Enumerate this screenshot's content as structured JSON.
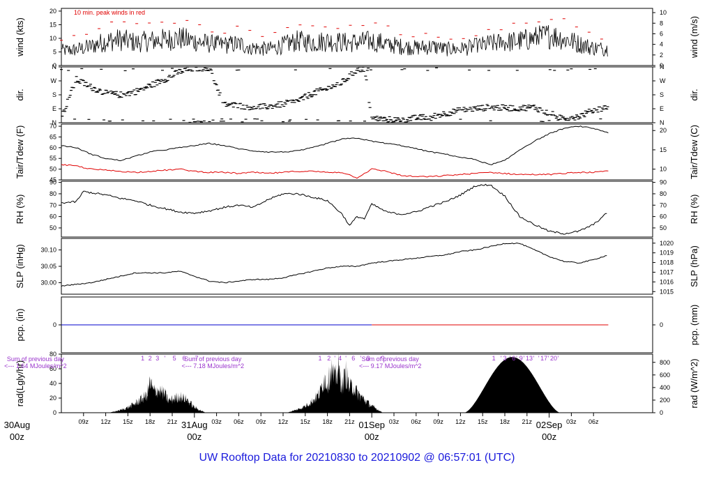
{
  "title": "UW Rooftop Data for 20210830  to  20210902 @ 06:57:01  (UTC)",
  "chart_data": {
    "type": "line",
    "x_range_hours": [
      0,
      80
    ],
    "time_ticks": [
      {
        "h": 3,
        "label": "09z"
      },
      {
        "h": 6,
        "label": "12z"
      },
      {
        "h": 9,
        "label": "15z"
      },
      {
        "h": 12,
        "label": "18z"
      },
      {
        "h": 15,
        "label": "21z"
      },
      {
        "h": 21,
        "label": "03z"
      },
      {
        "h": 24,
        "label": "06z"
      },
      {
        "h": 27,
        "label": "09z"
      },
      {
        "h": 30,
        "label": "12z"
      },
      {
        "h": 33,
        "label": "15z"
      },
      {
        "h": 36,
        "label": "18z"
      },
      {
        "h": 39,
        "label": "21z"
      },
      {
        "h": 45,
        "label": "03z"
      },
      {
        "h": 48,
        "label": "06z"
      },
      {
        "h": 51,
        "label": "09z"
      },
      {
        "h": 54,
        "label": "12z"
      },
      {
        "h": 57,
        "label": "15z"
      },
      {
        "h": 60,
        "label": "18z"
      },
      {
        "h": 63,
        "label": "21z"
      },
      {
        "h": 69,
        "label": "03z"
      },
      {
        "h": 72,
        "label": "06z"
      }
    ],
    "date_ticks": [
      {
        "h": -6,
        "label": "30Aug",
        "sub": "00z"
      },
      {
        "h": 18,
        "label": "31Aug",
        "sub": "00z"
      },
      {
        "h": 42,
        "label": "01Sep",
        "sub": "00z"
      },
      {
        "h": 66,
        "label": "02Sep",
        "sub": "00z"
      }
    ],
    "colors": {
      "main": "#000000",
      "dewpoint": "#e00000",
      "peak": "#e00000",
      "note": "#9933cc",
      "precip_a": "#0000cc",
      "precip_b": "#e00000",
      "date": "#e00000",
      "title": "#1a1adc"
    },
    "panels": {
      "wind": {
        "ylabel": "wind (kts)",
        "ylabel_right": "wind (m/s)",
        "ylim": [
          0,
          21
        ],
        "ticks": [
          0,
          5,
          10,
          15,
          20
        ],
        "right_ticks": [
          "0",
          "2",
          "4",
          "6",
          "8",
          "10"
        ],
        "annotation": "10 min. peak winds in red",
        "mean_x": [
          0,
          2,
          4,
          6,
          8,
          10,
          12,
          14,
          16,
          18,
          20,
          22,
          24,
          26,
          28,
          30,
          32,
          34,
          36,
          38,
          40,
          42,
          44,
          46,
          48,
          50,
          52,
          54,
          56,
          58,
          60,
          62,
          64,
          66,
          68,
          70,
          72,
          74
        ],
        "mean_y": [
          5.5,
          5.8,
          7,
          9,
          9.5,
          8.5,
          9,
          9.5,
          10,
          9,
          8,
          7.5,
          8,
          6.5,
          6,
          7.5,
          9,
          8.5,
          9,
          8.5,
          8.5,
          9,
          8,
          7,
          6.5,
          7,
          6,
          6,
          7,
          8,
          8.5,
          9,
          10,
          11,
          10,
          8,
          6.5,
          6
        ]
      },
      "dir": {
        "ylabel": "dir.",
        "ylabel_right": "dir.",
        "tick_labels": [
          "N",
          "E",
          "S",
          "W",
          "N"
        ],
        "x": [
          0,
          2,
          4,
          6,
          8,
          10,
          12,
          14,
          16,
          18,
          20,
          22,
          24,
          26,
          28,
          30,
          32,
          34,
          36,
          38,
          39,
          40,
          41,
          42,
          44,
          46,
          48,
          50,
          52,
          54,
          56,
          58,
          60,
          62,
          64,
          66,
          68,
          70,
          72,
          74
        ],
        "deg": [
          30,
          280,
          230,
          190,
          180,
          200,
          240,
          280,
          330,
          350,
          355,
          120,
          110,
          100,
          105,
          120,
          140,
          190,
          220,
          260,
          300,
          340,
          350,
          30,
          20,
          20,
          30,
          40,
          60,
          80,
          90,
          100,
          95,
          95,
          100,
          60,
          30,
          40,
          80,
          100
        ]
      },
      "temp": {
        "ylabel": "Tair/Tdew (F)",
        "ylabel_right": "Tair/Tdew (C)",
        "ylim": [
          45,
          71
        ],
        "ticks": [
          45,
          50,
          55,
          60,
          65,
          70
        ],
        "right_ticks": [
          {
            "c": 10,
            "label": "10"
          },
          {
            "c": 15,
            "label": "15"
          },
          {
            "c": 20,
            "label": "20"
          }
        ],
        "x": [
          0,
          2,
          4,
          6,
          8,
          10,
          12,
          14,
          16,
          18,
          20,
          22,
          24,
          26,
          28,
          30,
          32,
          34,
          36,
          38,
          40,
          42,
          44,
          46,
          48,
          50,
          52,
          54,
          56,
          58,
          60,
          62,
          64,
          66,
          68,
          70,
          72,
          74
        ],
        "tair": [
          61,
          60,
          57,
          55,
          54,
          56,
          58,
          59,
          60,
          61,
          62,
          61,
          59.5,
          58.5,
          58,
          58,
          58.5,
          60,
          62,
          64,
          64.5,
          63,
          62,
          61,
          59.5,
          58,
          57,
          55.5,
          54.5,
          52,
          54,
          59,
          63,
          66.5,
          69,
          70,
          69,
          67
        ],
        "tdew": [
          52,
          51.5,
          50,
          49.5,
          49,
          48.5,
          49,
          49.5,
          50,
          49,
          48.5,
          48.5,
          48,
          48.5,
          48,
          48.5,
          49,
          49,
          48.5,
          48.5,
          46,
          50,
          49,
          47,
          46.5,
          46.5,
          47,
          47.5,
          48,
          48.5,
          48,
          47.5,
          47.5,
          47.5,
          48,
          48.5,
          48.5,
          49
        ]
      },
      "rh": {
        "ylabel": "RH (%)",
        "ylabel_right": "RH (%)",
        "ylim": [
          42,
          91
        ],
        "ticks": [
          50,
          60,
          70,
          80,
          90
        ],
        "x": [
          0,
          2,
          3,
          4,
          6,
          8,
          10,
          12,
          14,
          16,
          18,
          20,
          22,
          24,
          26,
          28,
          30,
          32,
          34,
          36,
          38,
          39,
          40,
          41,
          42,
          44,
          46,
          48,
          50,
          52,
          54,
          56,
          58,
          60,
          62,
          64,
          66,
          68,
          70,
          72,
          74
        ],
        "values": [
          72,
          73,
          82,
          81,
          79,
          76,
          74,
          70,
          67,
          64,
          63,
          65,
          68,
          70,
          68,
          75,
          80,
          80,
          77,
          74,
          62,
          52,
          60,
          58,
          71,
          64,
          62,
          64,
          69,
          73,
          79,
          87,
          88,
          78,
          60,
          53,
          47,
          45,
          47,
          53,
          64
        ]
      },
      "slp": {
        "ylabel": "SLP (inHg)",
        "ylabel_right": "SLP (hPa)",
        "ylim": [
          29.965,
          30.135
        ],
        "ticks": [
          30.0,
          30.05,
          30.1
        ],
        "tick_labels": [
          "30.00",
          "30.05",
          "30.10"
        ],
        "right_ticks": [
          1015,
          1016,
          1017,
          1018,
          1019,
          1020
        ],
        "x": [
          0,
          2,
          4,
          6,
          8,
          10,
          12,
          14,
          16,
          18,
          20,
          22,
          24,
          26,
          28,
          30,
          32,
          34,
          36,
          38,
          40,
          42,
          44,
          46,
          48,
          50,
          52,
          54,
          56,
          58,
          60,
          62,
          64,
          66,
          68,
          70,
          72,
          74
        ],
        "values": [
          29.99,
          29.995,
          30.0,
          30.01,
          30.02,
          30.03,
          30.03,
          30.03,
          30.035,
          30.02,
          30.005,
          30.0,
          30.005,
          30.01,
          30.01,
          30.015,
          30.025,
          30.035,
          30.045,
          30.05,
          30.05,
          30.06,
          30.065,
          30.07,
          30.075,
          30.08,
          30.085,
          30.095,
          30.1,
          30.11,
          30.12,
          30.12,
          30.1,
          30.08,
          30.065,
          30.06,
          30.07,
          30.085
        ]
      },
      "pcp": {
        "ylabel": "pcp. (in)",
        "ylabel_right": "pcp. (mm)",
        "tick_left": "0",
        "tick_right": "0",
        "segments": [
          {
            "from": 0,
            "to": 42,
            "value": 0,
            "color": "#0000cc"
          },
          {
            "from": 42,
            "to": 74,
            "value": 0,
            "color": "#e00000"
          }
        ]
      },
      "rad": {
        "ylabel": "rad(Lgly/hr)",
        "ylabel_right": "rad (W/m^2)",
        "ylim": [
          0,
          80
        ],
        "ticks": [
          0,
          20,
          40,
          60,
          80
        ],
        "right_ticks": [
          0,
          200,
          400,
          600,
          800
        ],
        "days": [
          {
            "x": [
              6.5,
              8,
              9,
              10,
              11,
              11.5,
              12,
              12.5,
              13,
              14,
              14.5,
              15,
              16,
              16.5,
              17,
              18,
              19.5
            ],
            "y": [
              0,
              4,
              8,
              14,
              22,
              25,
              45,
              32,
              35,
              28,
              18,
              20,
              25,
              22,
              20,
              8,
              0
            ]
          },
          {
            "x": [
              30.5,
              32,
              33,
              34,
              35,
              35.5,
              36,
              36.5,
              37,
              37.5,
              38,
              38.5,
              39,
              39.5,
              40,
              41,
              42,
              43.5
            ],
            "y": [
              0,
              5,
              10,
              18,
              30,
              52,
              45,
              65,
              50,
              66,
              40,
              60,
              38,
              40,
              30,
              20,
              10,
              0
            ]
          }
        ],
        "day3_range": [
          54.5,
          67.5
        ],
        "day3_peak": 76,
        "hour_marks": [
          {
            "h": 11,
            "label": "1"
          },
          {
            "h": 12,
            "label": "2"
          },
          {
            "h": 13,
            "label": "3"
          },
          {
            "h": 14,
            "label": "'"
          },
          {
            "h": 15.3,
            "label": "5"
          },
          {
            "h": 16.6,
            "label": "6"
          },
          {
            "h": 18.3,
            "label": "7"
          },
          {
            "h": 35,
            "label": "1"
          },
          {
            "h": 36.2,
            "label": "2"
          },
          {
            "h": 37,
            "label": "'"
          },
          {
            "h": 37.7,
            "label": "4"
          },
          {
            "h": 38.5,
            "label": "'"
          },
          {
            "h": 39.5,
            "label": "6"
          },
          {
            "h": 40.5,
            "label": "'"
          },
          {
            "h": 41.5,
            "label": "8"
          },
          {
            "h": 43.5,
            "label": "9"
          },
          {
            "h": 58.5,
            "label": "1"
          },
          {
            "h": 59.5,
            "label": "'"
          },
          {
            "h": 60,
            "label": "3"
          },
          {
            "h": 60.7,
            "label": "'"
          },
          {
            "h": 61.2,
            "label": "6"
          },
          {
            "h": 61.6,
            "label": "'"
          },
          {
            "h": 62.2,
            "label": "9"
          },
          {
            "h": 62.6,
            "label": "'"
          },
          {
            "h": 63.3,
            "label": "13"
          },
          {
            "h": 63.9,
            "label": "'"
          },
          {
            "h": 64.6,
            "label": "'"
          },
          {
            "h": 65.3,
            "label": "17"
          },
          {
            "h": 65.9,
            "label": "'"
          },
          {
            "h": 66.6,
            "label": "20"
          },
          {
            "h": 67.2,
            "label": "'"
          }
        ],
        "daily_sums": [
          {
            "h": -3.5,
            "line1": "Sum of previous day",
            "line2": "<--- 1.64 MJoules/m^2"
          },
          {
            "h": 20.5,
            "line1": "Sum of previous day",
            "line2": "<--- 7.18 MJoules/m^2"
          },
          {
            "h": 44.5,
            "line1": "Sum of previous day",
            "line2": "<--- 9.17 MJoules/m^2"
          }
        ]
      }
    }
  }
}
